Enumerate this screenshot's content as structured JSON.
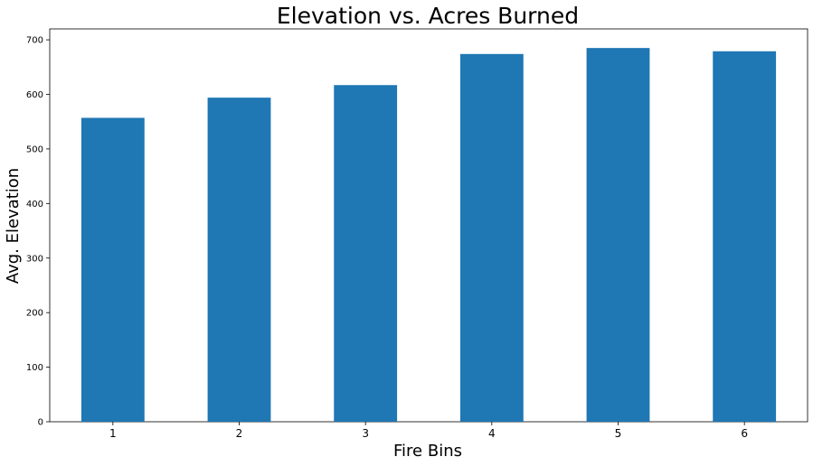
{
  "chart_data": {
    "type": "bar",
    "title": "Elevation vs. Acres Burned",
    "xlabel": "Fire Bins",
    "ylabel": "Avg. Elevation",
    "categories": [
      "1",
      "2",
      "3",
      "4",
      "5",
      "6"
    ],
    "values": [
      557,
      594,
      617,
      674,
      685,
      679
    ],
    "ylim": [
      0,
      720
    ],
    "yticks": [
      0,
      100,
      200,
      300,
      400,
      500,
      600,
      700
    ],
    "grid": false,
    "legend": "none",
    "bar_color": "#1f77b4"
  }
}
